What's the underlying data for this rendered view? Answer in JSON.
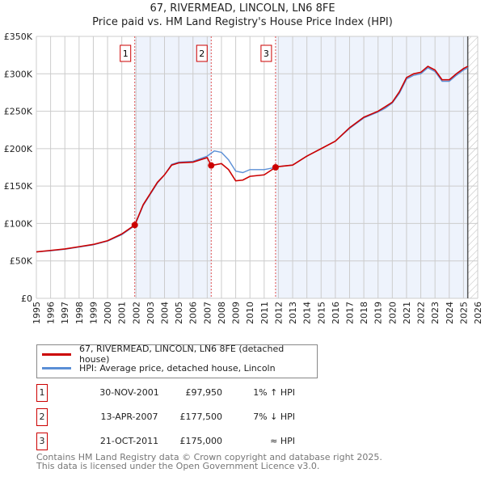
{
  "chart_data": {
    "type": "line",
    "title": "67, RIVERMEAD, LINCOLN, LN6 8FE",
    "subtitle": "Price paid vs. HM Land Registry's House Price Index (HPI)",
    "xlim": [
      1995,
      2026
    ],
    "ylim": [
      0,
      350000
    ],
    "x_ticks": [
      "1995",
      "1996",
      "1997",
      "1998",
      "1999",
      "2000",
      "2001",
      "2002",
      "2003",
      "2004",
      "2005",
      "2006",
      "2007",
      "2008",
      "2009",
      "2010",
      "2011",
      "2012",
      "2013",
      "2014",
      "2015",
      "2016",
      "2017",
      "2018",
      "2019",
      "2020",
      "2021",
      "2022",
      "2023",
      "2024",
      "2025",
      "2026"
    ],
    "y_ticks": [
      {
        "v": 0,
        "label": "£0"
      },
      {
        "v": 50000,
        "label": "£50K"
      },
      {
        "v": 100000,
        "label": "£100K"
      },
      {
        "v": 150000,
        "label": "£150K"
      },
      {
        "v": 200000,
        "label": "£200K"
      },
      {
        "v": 250000,
        "label": "£250K"
      },
      {
        "v": 300000,
        "label": "£300K"
      },
      {
        "v": 350000,
        "label": "£350K"
      }
    ],
    "grid": true,
    "series": [
      {
        "name": "67, RIVERMEAD, LINCOLN, LN6 8FE (detached house)",
        "color": "#cc0000",
        "x": [
          1995,
          1996,
          1997,
          1998,
          1999,
          2000,
          2001,
          2001.91,
          2002.5,
          2003,
          2003.5,
          2004,
          2004.5,
          2005,
          2006,
          2007,
          2007.28,
          2008,
          2008.5,
          2009,
          2009.5,
          2010,
          2011,
          2011.8,
          2012,
          2013,
          2014,
          2015,
          2016,
          2017,
          2018,
          2019,
          2019.5,
          2020,
          2020.5,
          2021,
          2021.5,
          2022,
          2022.5,
          2023,
          2023.5,
          2024,
          2024.5,
          2025,
          2025.3
        ],
        "y": [
          62000,
          64000,
          66000,
          69000,
          72000,
          77000,
          86000,
          97950,
          125000,
          140000,
          155000,
          165000,
          178000,
          181000,
          182000,
          188000,
          177500,
          180000,
          172000,
          157000,
          158000,
          163000,
          165000,
          175000,
          176000,
          178000,
          190000,
          200000,
          210000,
          228000,
          242000,
          250000,
          256000,
          262000,
          276000,
          295000,
          300000,
          302000,
          310000,
          305000,
          292000,
          292000,
          300000,
          307000,
          310000
        ]
      },
      {
        "name": "HPI: Average price, detached house, Lincoln",
        "color": "#5b8fd6",
        "x": [
          1995,
          1996,
          1997,
          1998,
          1999,
          2000,
          2001,
          2001.91,
          2002.5,
          2003,
          2003.5,
          2004,
          2004.5,
          2005,
          2006,
          2007,
          2007.5,
          2008,
          2008.5,
          2009,
          2009.5,
          2010,
          2011,
          2011.8,
          2012,
          2013,
          2014,
          2015,
          2016,
          2017,
          2018,
          2019,
          2019.5,
          2020,
          2020.5,
          2021,
          2021.5,
          2022,
          2022.5,
          2023,
          2023.5,
          2024,
          2024.5,
          2025,
          2025.3
        ],
        "y": [
          62000,
          63500,
          65500,
          68500,
          71500,
          76500,
          85000,
          97000,
          124000,
          139000,
          154000,
          165000,
          179000,
          182000,
          183000,
          190000,
          197000,
          195000,
          185000,
          170000,
          168000,
          172000,
          172000,
          175000,
          176000,
          178000,
          190000,
          200000,
          210000,
          227000,
          241000,
          249000,
          254000,
          261000,
          274000,
          293000,
          298000,
          300000,
          308000,
          303000,
          290000,
          290000,
          298000,
          305000,
          308000
        ]
      }
    ],
    "sales": [
      {
        "id": "1",
        "x": 2001.91,
        "y": 97950
      },
      {
        "id": "2",
        "x": 2007.28,
        "y": 177500
      },
      {
        "id": "3",
        "x": 2011.8,
        "y": 175000
      }
    ],
    "forecast_from": 2025.3
  },
  "legend": {
    "red": "67, RIVERMEAD, LINCOLN, LN6 8FE (detached house)",
    "blue": "HPI: Average price, detached house, Lincoln"
  },
  "table": [
    {
      "id": "1",
      "date": "30-NOV-2001",
      "price": "£97,950",
      "hpi": "1% ↑ HPI"
    },
    {
      "id": "2",
      "date": "13-APR-2007",
      "price": "£177,500",
      "hpi": "7% ↓ HPI"
    },
    {
      "id": "3",
      "date": "21-OCT-2011",
      "price": "£175,000",
      "hpi": "≈ HPI"
    }
  ],
  "footer": {
    "line1": "Contains HM Land Registry data © Crown copyright and database right 2025.",
    "line2": "This data is licensed under the Open Government Licence v3.0."
  }
}
